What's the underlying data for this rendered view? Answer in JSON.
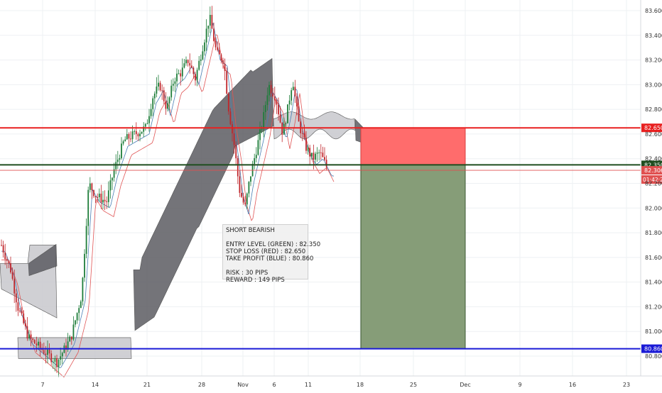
{
  "chart_data": {
    "type": "line",
    "title": "",
    "instrument_note": "candlestick price chart with Ichimoku cloud and position tool",
    "y_axis": {
      "side": "right",
      "ylim": [
        80.7,
        83.65
      ],
      "ticks": [
        "83.600",
        "83.400",
        "83.200",
        "83.000",
        "82.800",
        "82.600",
        "82.400",
        "82.200",
        "82.000",
        "81.800",
        "81.600",
        "81.400",
        "81.200",
        "81.000",
        "80.800"
      ]
    },
    "x_axis": {
      "ticks": [
        "7",
        "14",
        "21",
        "28",
        "Nov",
        "6",
        "11",
        "18",
        "25",
        "Dec",
        "9",
        "16",
        "23"
      ]
    },
    "levels": [
      {
        "name": "stop_loss",
        "value": 82.65,
        "label": "82.650",
        "color": "#e82020"
      },
      {
        "name": "entry",
        "value": 82.35,
        "label": "82.350",
        "color": "#1f4d1f"
      },
      {
        "name": "current_price",
        "value": 82.306,
        "label": "82.306",
        "color": "#e05050"
      },
      {
        "name": "take_profit",
        "value": 80.86,
        "label": "80.860",
        "color": "#1a1ad6"
      }
    ],
    "countdown_label": "01:42:27",
    "annotation": {
      "title": "SHORT BEARISH",
      "entry": "ENTRY LEVEL (GREEN) : 82.350",
      "stop": "STOP LOSS (RED) : 82.650",
      "target": "TAKE PROFIT (BLUE) : 80.860",
      "risk": "RISK : 30 PIPS",
      "reward": "REWARD : 149 PIPS"
    },
    "colors": {
      "bull": "#1e7d3a",
      "bear": "#c0262b",
      "cloud_bear": "#5c5c62",
      "cloud_bull": "#c8c8cc",
      "risk_zone": "#ff6c6c",
      "reward_zone": "#869d78",
      "grid": "#eef0f3"
    },
    "grid": true
  }
}
